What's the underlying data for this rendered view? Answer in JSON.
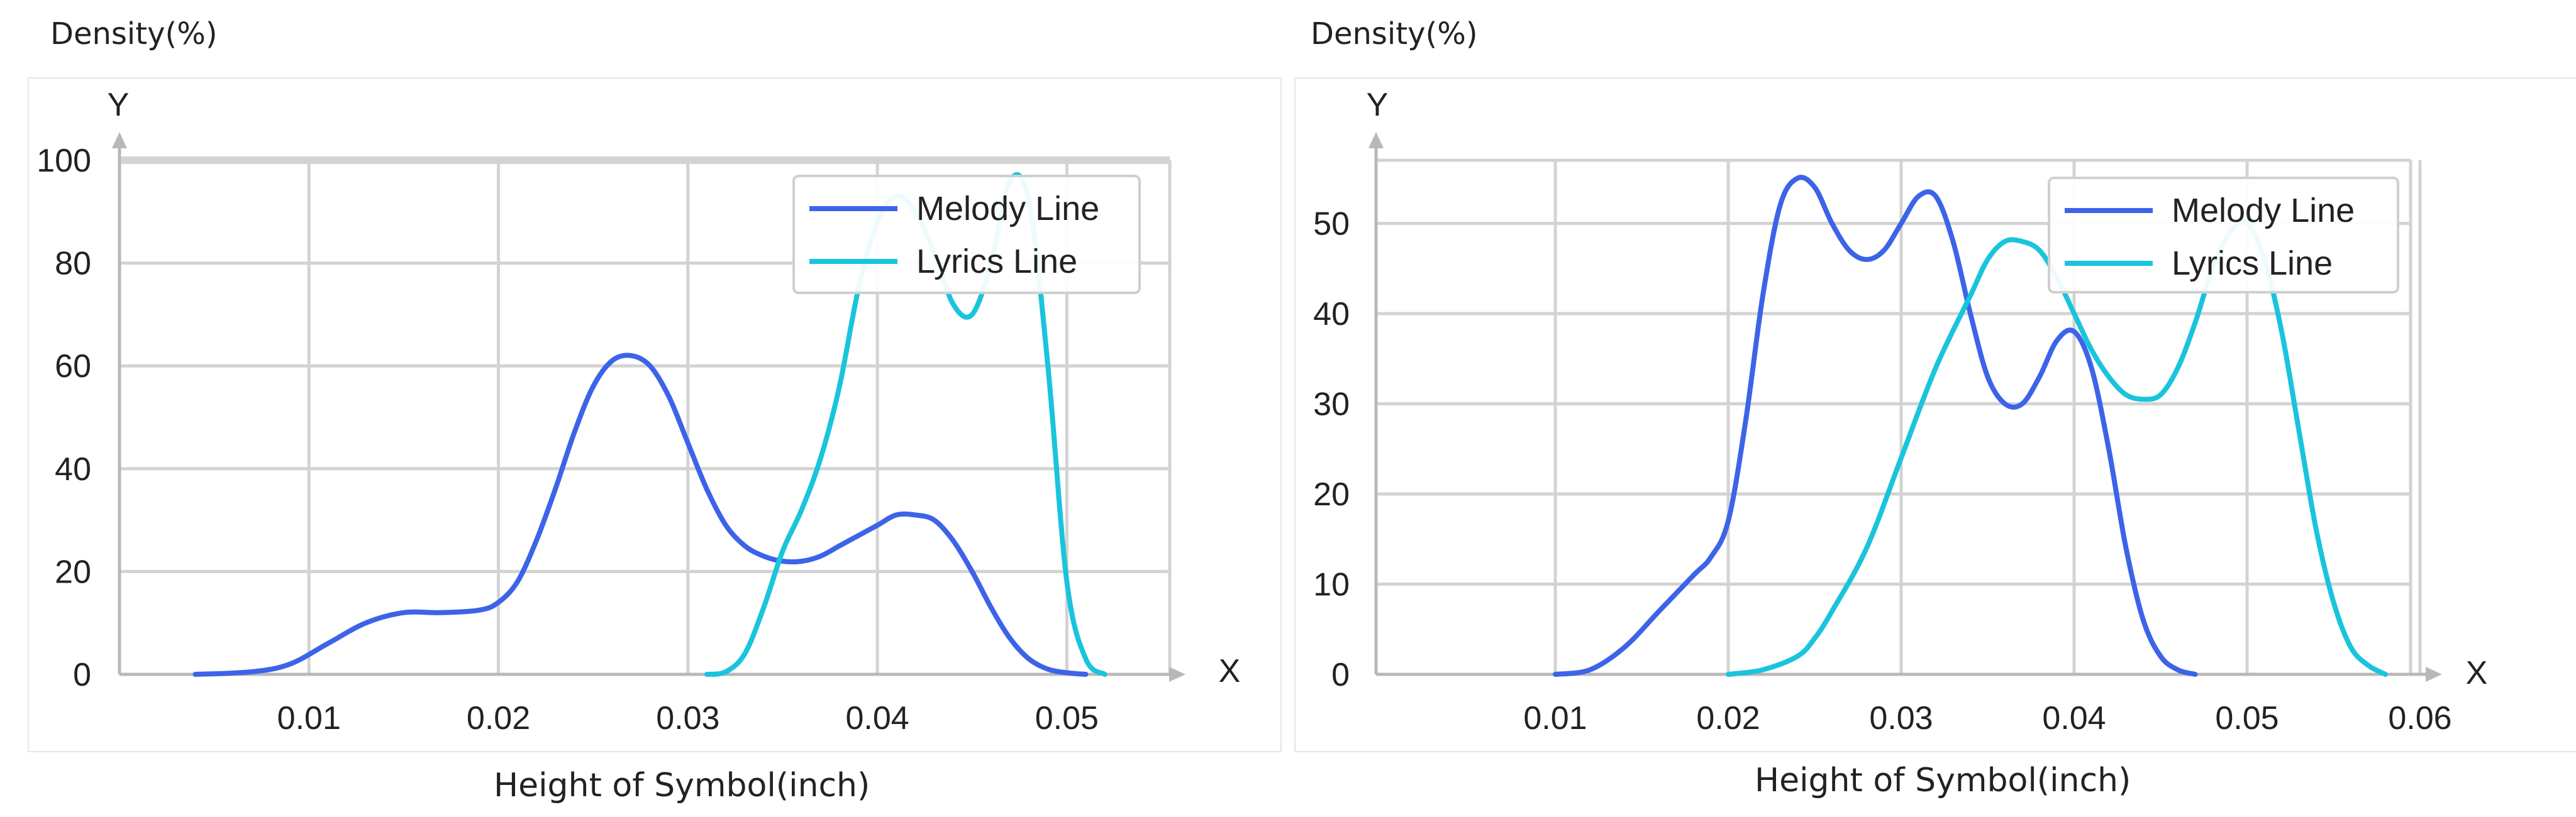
{
  "chart_data": [
    {
      "type": "line",
      "density_label": "Density(%)",
      "y_axis_letter": "Y",
      "x_axis_letter": "X",
      "xlabel": "Height of Symbol(inch)",
      "xlim": [
        0.0,
        0.055
      ],
      "ylim": [
        0,
        100
      ],
      "x_ticks": [
        "0.01",
        "0.02",
        "0.03",
        "0.04",
        "0.05"
      ],
      "y_ticks": [
        "0",
        "20",
        "40",
        "60",
        "80",
        "100"
      ],
      "grid": true,
      "legend_position": "top-right",
      "series": [
        {
          "name": "Melody Line",
          "color": "#3d63e8",
          "points": [
            [
              0.004,
              0
            ],
            [
              0.007,
              0.5
            ],
            [
              0.009,
              2
            ],
            [
              0.011,
              6
            ],
            [
              0.013,
              10
            ],
            [
              0.015,
              12
            ],
            [
              0.017,
              12
            ],
            [
              0.019,
              12.5
            ],
            [
              0.02,
              14
            ],
            [
              0.021,
              18
            ],
            [
              0.022,
              26
            ],
            [
              0.023,
              36
            ],
            [
              0.024,
              47
            ],
            [
              0.025,
              56
            ],
            [
              0.026,
              61
            ],
            [
              0.027,
              62
            ],
            [
              0.028,
              60
            ],
            [
              0.029,
              54
            ],
            [
              0.03,
              45
            ],
            [
              0.031,
              36
            ],
            [
              0.032,
              29
            ],
            [
              0.033,
              25
            ],
            [
              0.034,
              23
            ],
            [
              0.035,
              22
            ],
            [
              0.036,
              22
            ],
            [
              0.037,
              23
            ],
            [
              0.038,
              25
            ],
            [
              0.039,
              27
            ],
            [
              0.04,
              29
            ],
            [
              0.041,
              31
            ],
            [
              0.042,
              31
            ],
            [
              0.043,
              30
            ],
            [
              0.044,
              26
            ],
            [
              0.045,
              20
            ],
            [
              0.046,
              13
            ],
            [
              0.047,
              7
            ],
            [
              0.048,
              3
            ],
            [
              0.049,
              1
            ],
            [
              0.05,
              0.3
            ],
            [
              0.051,
              0
            ]
          ]
        },
        {
          "name": "Lyrics Line",
          "color": "#19c4dc",
          "points": [
            [
              0.031,
              0
            ],
            [
              0.032,
              0.5
            ],
            [
              0.033,
              4
            ],
            [
              0.034,
              13
            ],
            [
              0.035,
              24
            ],
            [
              0.036,
              32
            ],
            [
              0.037,
              42
            ],
            [
              0.038,
              56
            ],
            [
              0.039,
              75
            ],
            [
              0.04,
              88
            ],
            [
              0.041,
              93
            ],
            [
              0.042,
              90
            ],
            [
              0.043,
              82
            ],
            [
              0.044,
              72
            ],
            [
              0.045,
              70
            ],
            [
              0.046,
              80
            ],
            [
              0.047,
              96
            ],
            [
              0.048,
              92
            ],
            [
              0.049,
              60
            ],
            [
              0.05,
              18
            ],
            [
              0.051,
              3
            ],
            [
              0.052,
              0
            ]
          ]
        }
      ]
    },
    {
      "type": "line",
      "density_label": "Density(%)",
      "y_axis_letter": "Y",
      "x_axis_letter": "X",
      "xlabel": "Height of Symbol(inch)",
      "xlim": [
        0.0,
        0.06
      ],
      "ylim": [
        0,
        57
      ],
      "x_ticks": [
        "0.01",
        "0.02",
        "0.03",
        "0.04",
        "0.05",
        "0.06"
      ],
      "y_ticks": [
        "0",
        "10",
        "20",
        "30",
        "40",
        "50"
      ],
      "grid": true,
      "legend_position": "top-right",
      "series": [
        {
          "name": "Melody Line",
          "color": "#3d63e8",
          "points": [
            [
              0.01,
              0
            ],
            [
              0.012,
              0.5
            ],
            [
              0.014,
              3
            ],
            [
              0.016,
              7
            ],
            [
              0.018,
              11
            ],
            [
              0.019,
              13
            ],
            [
              0.02,
              17
            ],
            [
              0.021,
              28
            ],
            [
              0.022,
              42
            ],
            [
              0.023,
              52
            ],
            [
              0.024,
              55
            ],
            [
              0.025,
              54
            ],
            [
              0.026,
              50
            ],
            [
              0.027,
              47
            ],
            [
              0.028,
              46
            ],
            [
              0.029,
              47
            ],
            [
              0.03,
              50
            ],
            [
              0.031,
              53
            ],
            [
              0.032,
              53
            ],
            [
              0.033,
              48
            ],
            [
              0.034,
              40
            ],
            [
              0.035,
              33
            ],
            [
              0.036,
              30
            ],
            [
              0.037,
              30
            ],
            [
              0.038,
              33
            ],
            [
              0.039,
              37
            ],
            [
              0.04,
              38
            ],
            [
              0.041,
              34
            ],
            [
              0.042,
              25
            ],
            [
              0.043,
              14
            ],
            [
              0.044,
              6
            ],
            [
              0.045,
              2
            ],
            [
              0.046,
              0.5
            ],
            [
              0.047,
              0
            ]
          ]
        },
        {
          "name": "Lyrics Line",
          "color": "#19c4dc",
          "points": [
            [
              0.02,
              0
            ],
            [
              0.022,
              0.5
            ],
            [
              0.024,
              2
            ],
            [
              0.025,
              4
            ],
            [
              0.026,
              7
            ],
            [
              0.028,
              14
            ],
            [
              0.03,
              24
            ],
            [
              0.032,
              34
            ],
            [
              0.034,
              42
            ],
            [
              0.035,
              46
            ],
            [
              0.036,
              48
            ],
            [
              0.037,
              48
            ],
            [
              0.038,
              47
            ],
            [
              0.039,
              44
            ],
            [
              0.04,
              40
            ],
            [
              0.041,
              36
            ],
            [
              0.042,
              33
            ],
            [
              0.043,
              31
            ],
            [
              0.044,
              30.5
            ],
            [
              0.045,
              31
            ],
            [
              0.046,
              34
            ],
            [
              0.047,
              39
            ],
            [
              0.048,
              45
            ],
            [
              0.049,
              49
            ],
            [
              0.05,
              50
            ],
            [
              0.051,
              46
            ],
            [
              0.052,
              38
            ],
            [
              0.053,
              27
            ],
            [
              0.054,
              16
            ],
            [
              0.055,
              8
            ],
            [
              0.056,
              3
            ],
            [
              0.057,
              1
            ],
            [
              0.058,
              0
            ]
          ]
        }
      ]
    }
  ]
}
